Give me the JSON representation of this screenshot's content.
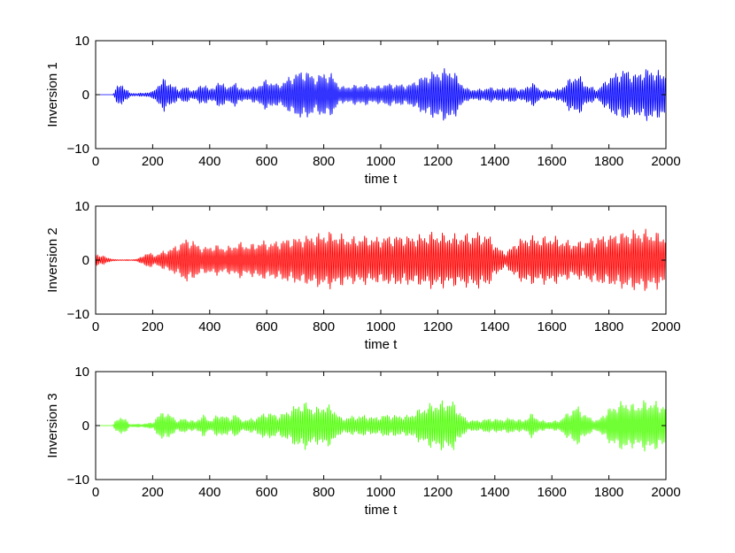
{
  "chart_data": [
    {
      "type": "line",
      "ylabel": "Inversion 1",
      "xlabel": "time t",
      "xlim": [
        0,
        2000
      ],
      "ylim": [
        -10,
        10
      ],
      "xticks": [
        "0",
        "200",
        "400",
        "600",
        "800",
        "1000",
        "1200",
        "1400",
        "1600",
        "1800",
        "2000"
      ],
      "yticks": [
        "-10",
        "0",
        "10"
      ],
      "color": "#0000ff",
      "series": [
        {
          "x": [
            0,
            60,
            75,
            90,
            105,
            120,
            160,
            200,
            215,
            240,
            265,
            290,
            310,
            350,
            375,
            400,
            425,
            450,
            470,
            490,
            505,
            530,
            560,
            600,
            640,
            680,
            710,
            740,
            770,
            800,
            830,
            860,
            900,
            940,
            980,
            1020,
            1060,
            1100,
            1140,
            1180,
            1220,
            1250,
            1275,
            1300,
            1340,
            1380,
            1420,
            1460,
            1500,
            1530,
            1560,
            1600,
            1630,
            1660,
            1690,
            1720,
            1760,
            1800,
            1830,
            1860,
            1890,
            1920,
            1950,
            1975,
            2000
          ],
          "amplitude": [
            0,
            0,
            1.6,
            2.2,
            1.4,
            0.3,
            0.3,
            0.6,
            1.8,
            3.2,
            2.2,
            1.0,
            1.6,
            0.8,
            2.4,
            1.0,
            2.2,
            2.4,
            1.2,
            3.0,
            1.2,
            1.2,
            1.5,
            3.0,
            2.0,
            3.5,
            4.6,
            4.8,
            3.5,
            4.5,
            4.0,
            1.5,
            1.8,
            2.0,
            1.6,
            2.2,
            2.0,
            2.0,
            3.5,
            4.5,
            5.0,
            5.2,
            3.0,
            1.2,
            1.0,
            1.4,
            1.2,
            1.5,
            1.0,
            2.5,
            1.0,
            0.8,
            1.2,
            3.0,
            4.2,
            2.0,
            1.0,
            3.5,
            4.5,
            5.2,
            4.0,
            5.0,
            5.2,
            4.5,
            4.5
          ]
        }
      ]
    },
    {
      "type": "line",
      "ylabel": "Inversion 2",
      "xlabel": "time t",
      "xlim": [
        0,
        2000
      ],
      "ylim": [
        -10,
        10
      ],
      "xticks": [
        "0",
        "200",
        "400",
        "600",
        "800",
        "1000",
        "1200",
        "1400",
        "1600",
        "1800",
        "2000"
      ],
      "yticks": [
        "-10",
        "0",
        "10"
      ],
      "color": "#ff0000",
      "series": [
        {
          "x": [
            0,
            20,
            40,
            70,
            100,
            130,
            150,
            180,
            210,
            240,
            270,
            300,
            320,
            350,
            380,
            420,
            460,
            500,
            540,
            580,
            620,
            660,
            700,
            740,
            780,
            820,
            860,
            900,
            940,
            980,
            1020,
            1060,
            1100,
            1140,
            1180,
            1220,
            1260,
            1300,
            1340,
            1380,
            1410,
            1440,
            1480,
            1520,
            1560,
            1600,
            1640,
            1680,
            1720,
            1760,
            1800,
            1840,
            1880,
            1920,
            1960,
            2000
          ],
          "amplitude": [
            1.2,
            1.0,
            0.5,
            0.1,
            0.1,
            0.1,
            0.3,
            1.5,
            1.0,
            1.8,
            2.5,
            3.5,
            4.5,
            3.5,
            2.5,
            3.0,
            2.5,
            3.5,
            3.0,
            3.8,
            3.5,
            4.2,
            4.5,
            4.8,
            5.2,
            5.5,
            5.0,
            4.5,
            4.8,
            4.5,
            4.8,
            5.0,
            4.8,
            5.0,
            5.5,
            5.2,
            5.0,
            5.2,
            5.5,
            5.0,
            2.5,
            1.5,
            4.0,
            4.8,
            4.5,
            4.8,
            4.0,
            3.5,
            4.0,
            4.8,
            5.0,
            5.5,
            5.8,
            6.0,
            5.5,
            5.0
          ]
        }
      ]
    },
    {
      "type": "line",
      "ylabel": "Inversion 3",
      "xlabel": "time t",
      "xlim": [
        0,
        2000
      ],
      "ylim": [
        -10,
        10
      ],
      "xticks": [
        "0",
        "200",
        "400",
        "600",
        "800",
        "1000",
        "1200",
        "1400",
        "1600",
        "1800",
        "2000"
      ],
      "yticks": [
        "-10",
        "0",
        "10"
      ],
      "color": "#4cff00",
      "series": [
        {
          "x": [
            0,
            60,
            75,
            90,
            105,
            120,
            160,
            200,
            215,
            240,
            265,
            290,
            310,
            350,
            375,
            400,
            425,
            450,
            470,
            490,
            505,
            530,
            560,
            600,
            640,
            680,
            710,
            740,
            770,
            800,
            830,
            860,
            900,
            940,
            980,
            1020,
            1060,
            1100,
            1140,
            1180,
            1220,
            1250,
            1275,
            1300,
            1340,
            1380,
            1420,
            1460,
            1500,
            1530,
            1560,
            1600,
            1630,
            1660,
            1690,
            1720,
            1760,
            1800,
            1830,
            1860,
            1890,
            1920,
            1950,
            1975,
            2000
          ],
          "amplitude": [
            0,
            0,
            1.4,
            1.9,
            1.2,
            0.3,
            0.3,
            0.6,
            1.8,
            3.0,
            2.0,
            1.0,
            1.5,
            0.8,
            2.2,
            1.0,
            2.0,
            2.3,
            1.2,
            2.8,
            1.2,
            1.2,
            1.5,
            2.8,
            2.0,
            3.2,
            4.4,
            4.6,
            3.4,
            4.2,
            3.8,
            1.5,
            1.8,
            2.0,
            1.6,
            2.2,
            2.0,
            2.0,
            3.4,
            4.4,
            4.8,
            5.0,
            3.0,
            1.2,
            1.0,
            1.4,
            1.2,
            1.5,
            1.0,
            2.4,
            1.0,
            0.8,
            1.2,
            2.8,
            4.0,
            2.0,
            1.0,
            3.4,
            4.4,
            5.0,
            4.0,
            4.8,
            5.0,
            4.4,
            4.4
          ]
        }
      ]
    }
  ]
}
